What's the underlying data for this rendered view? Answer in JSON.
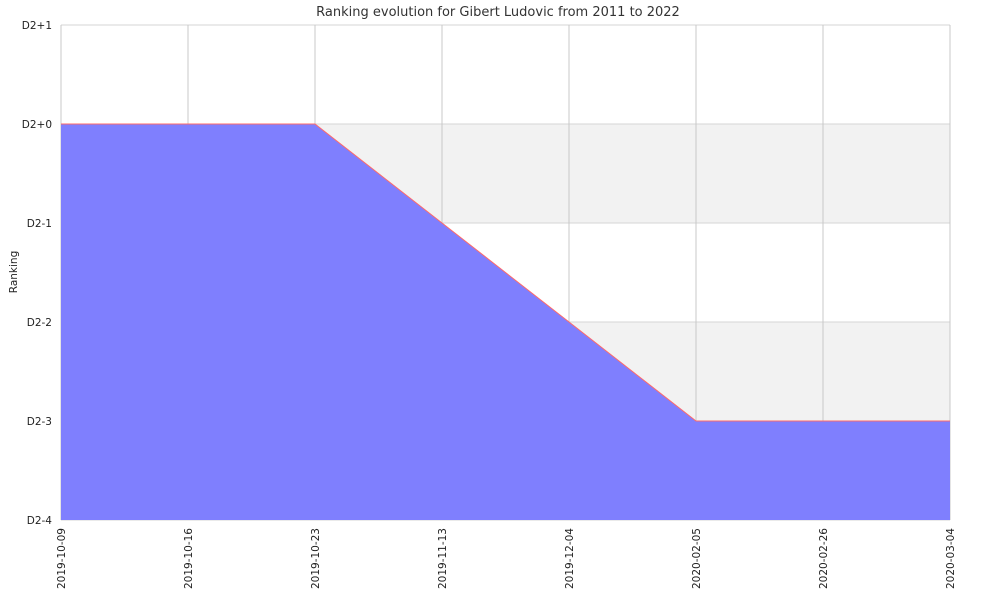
{
  "chart_data": {
    "type": "area",
    "title": "Ranking evolution for Gibert Ludovic from 2011 to 2022",
    "xlabel": "",
    "ylabel": "Ranking",
    "x": [
      "2019-10-09",
      "2019-10-16",
      "2019-10-23",
      "2019-11-13",
      "2019-12-04",
      "2020-02-05",
      "2020-02-26",
      "2020-03-04"
    ],
    "y_ticks": [
      "D2+1",
      "D2+0",
      "D2-1",
      "D2-2",
      "D2-3",
      "D2-4"
    ],
    "series": [
      {
        "values": [
          "D2+0",
          "D2+0",
          "D2+0",
          "D2-1",
          "D2-2",
          "D2-3",
          "D2-3",
          "D2-3"
        ],
        "fill_color": "#7f7ffe",
        "line_color": "#ff6a6a"
      }
    ],
    "ylim": [
      "D2-4",
      "D2+1"
    ],
    "grid": true,
    "band_color": "#f2f2f2"
  }
}
